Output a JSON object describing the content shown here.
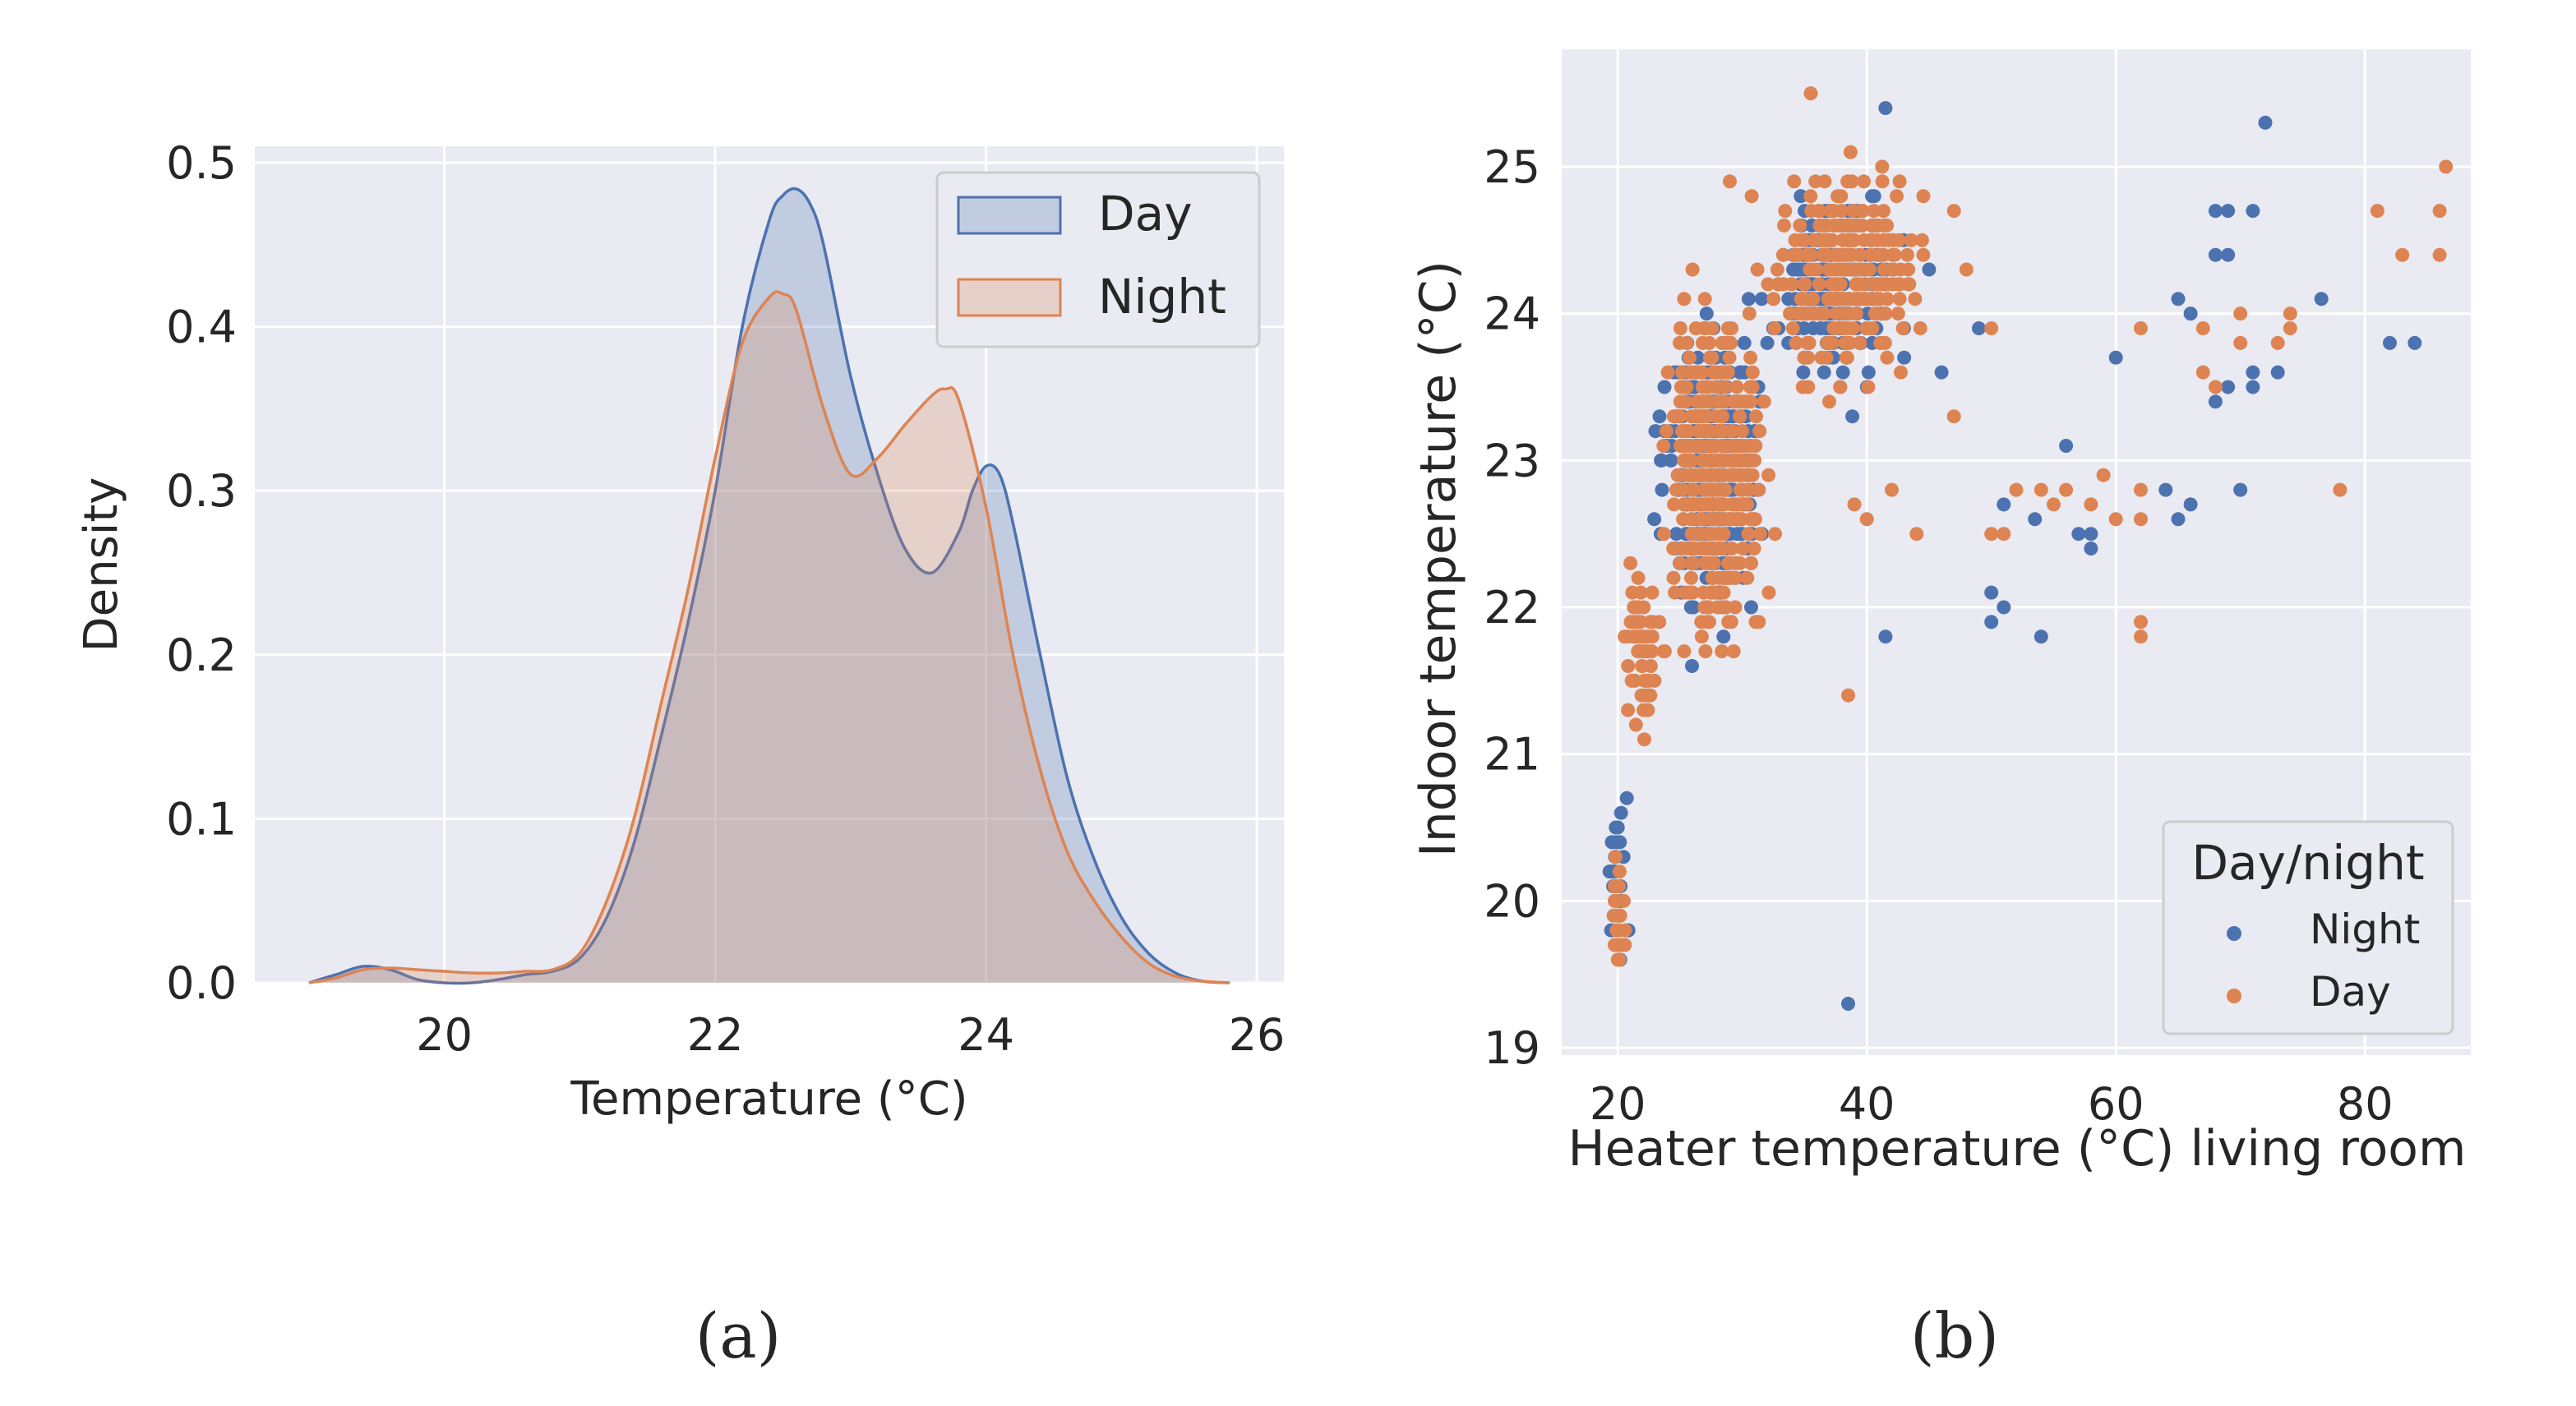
{
  "colors": {
    "day": "#4c72b0",
    "night": "#dd8452",
    "panel_bg": "#eaeaf2",
    "grid": "#ffffff",
    "text": "#262626"
  },
  "captions": {
    "a": "(a)",
    "b": "(b)"
  },
  "chart_data": [
    {
      "id": "a",
      "type": "area",
      "kind": "kde",
      "title": "",
      "xlabel": "Temperature (°C)",
      "ylabel": "Density",
      "xlim": [
        18.6,
        26.2
      ],
      "ylim": [
        0,
        0.51
      ],
      "xticks": [
        20,
        22,
        24,
        26
      ],
      "xtick_labels": [
        "20",
        "22",
        "24",
        "26"
      ],
      "yticks": [
        0.0,
        0.1,
        0.2,
        0.3,
        0.4,
        0.5
      ],
      "ytick_labels": [
        "0.0",
        "0.1",
        "0.2",
        "0.3",
        "0.4",
        "0.5"
      ],
      "grid": true,
      "legend": {
        "position": "top-right",
        "entries": [
          "Day",
          "Night"
        ]
      },
      "series": [
        {
          "name": "Day",
          "x": [
            19.0,
            19.2,
            19.4,
            19.6,
            19.8,
            20.0,
            20.2,
            20.4,
            20.6,
            20.8,
            21.0,
            21.2,
            21.4,
            21.6,
            21.8,
            22.0,
            22.2,
            22.4,
            22.5,
            22.6,
            22.7,
            22.8,
            23.0,
            23.2,
            23.4,
            23.6,
            23.8,
            23.9,
            24.0,
            24.1,
            24.2,
            24.4,
            24.6,
            24.8,
            25.0,
            25.2,
            25.4,
            25.6,
            25.8
          ],
          "values": [
            0.0,
            0.005,
            0.01,
            0.008,
            0.002,
            0.0,
            0.0,
            0.002,
            0.005,
            0.007,
            0.015,
            0.04,
            0.085,
            0.15,
            0.22,
            0.3,
            0.4,
            0.465,
            0.48,
            0.484,
            0.475,
            0.45,
            0.37,
            0.31,
            0.265,
            0.25,
            0.275,
            0.3,
            0.315,
            0.31,
            0.28,
            0.2,
            0.125,
            0.075,
            0.04,
            0.018,
            0.006,
            0.001,
            0.0
          ]
        },
        {
          "name": "Night",
          "x": [
            19.0,
            19.2,
            19.4,
            19.6,
            19.8,
            20.0,
            20.2,
            20.4,
            20.6,
            20.8,
            21.0,
            21.2,
            21.4,
            21.6,
            21.8,
            22.0,
            22.2,
            22.4,
            22.5,
            22.6,
            22.8,
            23.0,
            23.2,
            23.4,
            23.6,
            23.7,
            23.8,
            24.0,
            24.2,
            24.4,
            24.6,
            24.8,
            25.0,
            25.2,
            25.4,
            25.6,
            25.8
          ],
          "values": [
            0.0,
            0.003,
            0.008,
            0.009,
            0.008,
            0.007,
            0.006,
            0.006,
            0.007,
            0.008,
            0.018,
            0.05,
            0.1,
            0.17,
            0.24,
            0.32,
            0.39,
            0.418,
            0.42,
            0.41,
            0.35,
            0.31,
            0.32,
            0.34,
            0.358,
            0.362,
            0.355,
            0.29,
            0.2,
            0.13,
            0.08,
            0.05,
            0.028,
            0.012,
            0.004,
            0.001,
            0.0
          ]
        }
      ]
    },
    {
      "id": "b",
      "type": "scatter",
      "title": "",
      "xlabel": "Heater temperature (°C) living room",
      "ylabel": "Indoor temperature (°C)",
      "xlim": [
        15.5,
        88.5
      ],
      "ylim": [
        18.95,
        25.8
      ],
      "xticks": [
        20,
        40,
        60,
        80
      ],
      "xtick_labels": [
        "20",
        "40",
        "60",
        "80"
      ],
      "yticks": [
        19,
        20,
        21,
        22,
        23,
        24,
        25
      ],
      "ytick_labels": [
        "19",
        "20",
        "21",
        "22",
        "23",
        "24",
        "25"
      ],
      "grid": true,
      "legend": {
        "position": "bottom-right",
        "title": "Day/night",
        "entries": [
          "Night",
          "Day"
        ]
      },
      "dense_clusters": [
        {
          "series": "Night",
          "x_range": [
            19,
            21
          ],
          "y_range": [
            19.3,
            21.1
          ],
          "count": 30
        },
        {
          "series": "Night",
          "x_range": [
            22,
            33
          ],
          "y_range": [
            21.5,
            24.3
          ],
          "count": 320
        },
        {
          "series": "Night",
          "x_range": [
            30,
            44
          ],
          "y_range": [
            23.3,
            25.0
          ],
          "count": 180
        },
        {
          "series": "Day",
          "x_range": [
            19,
            21
          ],
          "y_range": [
            19.3,
            20.6
          ],
          "count": 25
        },
        {
          "series": "Day",
          "x_range": [
            20,
            24
          ],
          "y_range": [
            20.8,
            22.6
          ],
          "count": 60
        },
        {
          "series": "Day",
          "x_range": [
            23,
            33
          ],
          "y_range": [
            21.4,
            24.4
          ],
          "count": 380
        },
        {
          "series": "Day",
          "x_range": [
            30,
            46
          ],
          "y_range": [
            23.3,
            25.2
          ],
          "count": 260
        }
      ],
      "series": [
        {
          "name": "Night",
          "points": [
            [
              41.5,
              25.4
            ],
            [
              72,
              25.3
            ],
            [
              68,
              24.7
            ],
            [
              69,
              24.7
            ],
            [
              71,
              24.7
            ],
            [
              68,
              24.4
            ],
            [
              69,
              24.4
            ],
            [
              65,
              24.1
            ],
            [
              66,
              24.0
            ],
            [
              76.5,
              24.1
            ],
            [
              60,
              23.7
            ],
            [
              69,
              23.5
            ],
            [
              71,
              23.5
            ],
            [
              71,
              23.6
            ],
            [
              73,
              23.6
            ],
            [
              68,
              23.4
            ],
            [
              82,
              23.8
            ],
            [
              84,
              23.8
            ],
            [
              49,
              23.9
            ],
            [
              56,
              23.1
            ],
            [
              51,
              22.7
            ],
            [
              53.5,
              22.6
            ],
            [
              57,
              22.5
            ],
            [
              58,
              22.5
            ],
            [
              58,
              22.4
            ],
            [
              64,
              22.8
            ],
            [
              66,
              22.7
            ],
            [
              65,
              22.6
            ],
            [
              70,
              22.8
            ],
            [
              50,
              22.1
            ],
            [
              51,
              22.0
            ],
            [
              50,
              21.9
            ],
            [
              54,
              21.8
            ],
            [
              41.5,
              21.8
            ],
            [
              38.5,
              19.3
            ],
            [
              45,
              24.3
            ],
            [
              43,
              23.7
            ],
            [
              46,
              23.6
            ]
          ]
        },
        {
          "name": "Day",
          "points": [
            [
              35.5,
              25.5
            ],
            [
              86.5,
              25.0
            ],
            [
              81,
              24.7
            ],
            [
              86,
              24.7
            ],
            [
              83,
              24.4
            ],
            [
              86,
              24.4
            ],
            [
              67,
              23.9
            ],
            [
              70,
              24.0
            ],
            [
              74,
              24.0
            ],
            [
              62,
              23.9
            ],
            [
              74,
              23.9
            ],
            [
              73,
              23.8
            ],
            [
              67,
              23.6
            ],
            [
              68,
              23.5
            ],
            [
              70,
              23.8
            ],
            [
              59,
              22.9
            ],
            [
              62,
              22.8
            ],
            [
              52,
              22.8
            ],
            [
              54,
              22.8
            ],
            [
              56,
              22.8
            ],
            [
              55,
              22.7
            ],
            [
              58,
              22.7
            ],
            [
              60,
              22.6
            ],
            [
              62,
              22.6
            ],
            [
              50,
              22.5
            ],
            [
              51,
              22.5
            ],
            [
              62,
              21.9
            ],
            [
              62,
              21.8
            ],
            [
              78,
              22.8
            ],
            [
              38.5,
              21.4
            ],
            [
              40,
              22.6
            ],
            [
              39,
              22.7
            ],
            [
              42,
              22.8
            ],
            [
              44,
              22.5
            ],
            [
              47,
              23.3
            ],
            [
              50,
              23.9
            ],
            [
              48,
              24.3
            ],
            [
              47,
              24.7
            ],
            [
              29,
              24.9
            ],
            [
              26,
              24.3
            ],
            [
              27,
              24.1
            ]
          ]
        }
      ]
    }
  ]
}
